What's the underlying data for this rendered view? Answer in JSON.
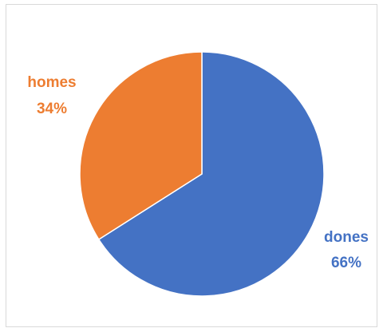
{
  "chart_data": {
    "type": "pie",
    "title": "",
    "legend": "none",
    "slices": [
      {
        "name": "dones",
        "value": 66,
        "label": "66%",
        "color": "#4472C4"
      },
      {
        "name": "homes",
        "value": 34,
        "label": "34%",
        "color": "#ED7D31"
      }
    ]
  }
}
